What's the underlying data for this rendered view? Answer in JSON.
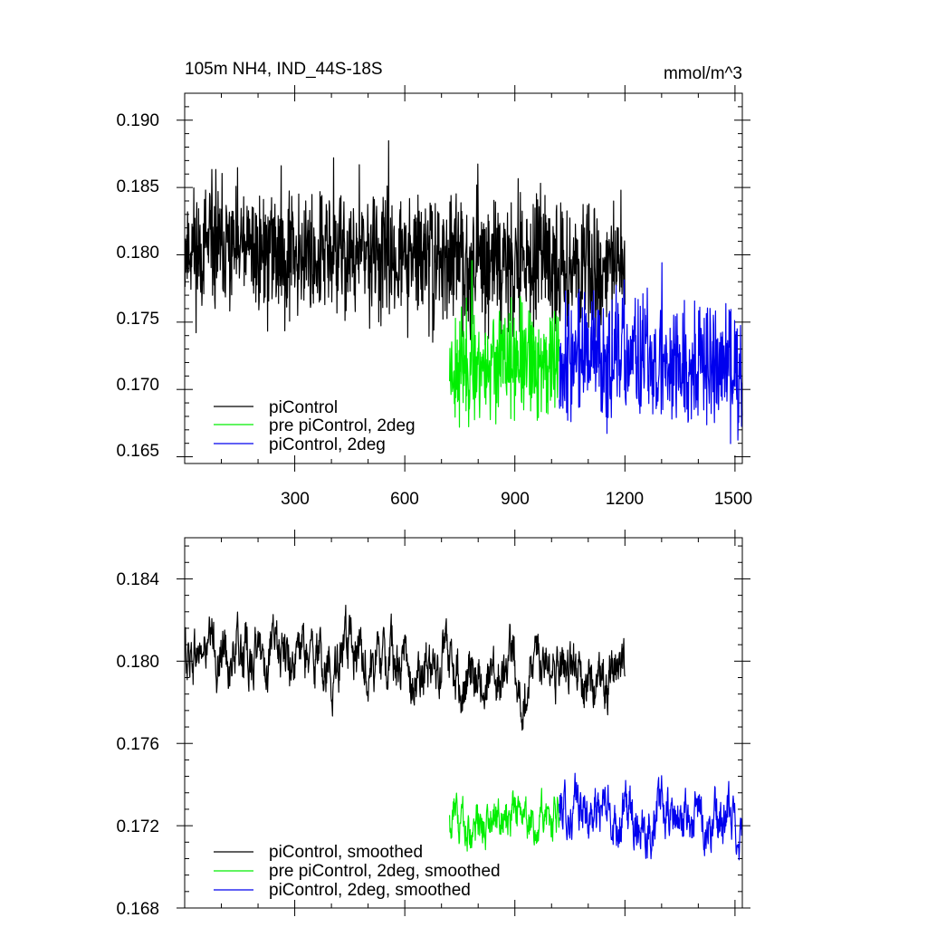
{
  "chart_data": [
    {
      "type": "line",
      "title": "105m NH4, IND_44S-18S",
      "units": "mmol/m^3",
      "xlim": [
        0,
        1520
      ],
      "ylim": [
        0.1645,
        0.192
      ],
      "xticks": [
        300,
        600,
        900,
        1200,
        1500
      ],
      "xtick_labels": [
        "300",
        "600",
        "900",
        "1200",
        "1500"
      ],
      "yticks": [
        0.165,
        0.17,
        0.175,
        0.18,
        0.185,
        0.19
      ],
      "ytick_labels": [
        "0.165",
        "0.170",
        "0.175",
        "0.180",
        "0.185",
        "0.190"
      ],
      "legend_position": "bottom-left",
      "series": [
        {
          "name": "piControl",
          "color": "#000000",
          "x_range": [
            1,
            1200
          ],
          "mean": 0.1805,
          "slope_per_year": -1.2e-06,
          "amplitude": 0.0048,
          "seed": 11
        },
        {
          "name": "pre piControl, 2deg",
          "color": "#00ee00",
          "x_range": [
            722,
            1021
          ],
          "mean": 0.1719,
          "slope_per_year": 0.0,
          "amplitude": 0.0042,
          "seed": 23
        },
        {
          "name": "piControl, 2deg",
          "color": "#0000ee",
          "x_range": [
            1021,
            1520
          ],
          "mean": 0.1726,
          "slope_per_year": -2e-06,
          "amplitude": 0.0048,
          "seed": 37
        }
      ]
    },
    {
      "type": "line",
      "xlim": [
        0,
        1520
      ],
      "ylim": [
        0.168,
        0.186
      ],
      "xticks": [
        300,
        600,
        900,
        1200,
        1500
      ],
      "yticks": [
        0.168,
        0.172,
        0.176,
        0.18,
        0.184
      ],
      "ytick_labels": [
        "0.168",
        "0.172",
        "0.176",
        "0.180",
        "0.184"
      ],
      "legend_position": "bottom-left",
      "series": [
        {
          "name": "piControl, smoothed",
          "color": "#000000",
          "x_range": [
            1,
            1200
          ],
          "mean": 0.1805,
          "slope_per_year": -1.2e-06,
          "amplitude": 0.0019,
          "seed": 11
        },
        {
          "name": "pre piControl, 2deg, smoothed",
          "color": "#00ee00",
          "x_range": [
            722,
            1021
          ],
          "mean": 0.1723,
          "slope_per_year": 0.0,
          "amplitude": 0.0015,
          "seed": 23
        },
        {
          "name": "piControl, 2deg, smoothed",
          "color": "#0000ee",
          "x_range": [
            1021,
            1520
          ],
          "mean": 0.1728,
          "slope_per_year": -1.5e-06,
          "amplitude": 0.0018,
          "seed": 37
        }
      ]
    }
  ]
}
